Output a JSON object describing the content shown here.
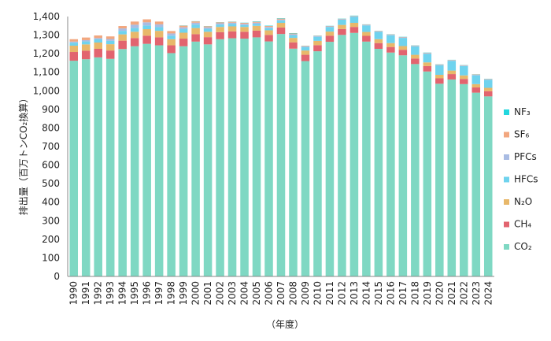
{
  "chart_data": {
    "type": "bar",
    "stacked": true,
    "title": "",
    "ylabel": "排出量（百万トンCO₂換算）",
    "xlabel": "（年度）",
    "ylim": [
      0,
      1400
    ],
    "yticks": [
      0,
      100,
      200,
      300,
      400,
      500,
      600,
      700,
      800,
      900,
      1000,
      1100,
      1200,
      1300,
      1400
    ],
    "ytick_labels": [
      "0",
      "100",
      "200",
      "300",
      "400",
      "500",
      "600",
      "700",
      "800",
      "900",
      "1,000",
      "1,100",
      "1,200",
      "1,300",
      "1,400"
    ],
    "grid": false,
    "legend_position": "right",
    "categories": [
      "1990",
      "1991",
      "1992",
      "1993",
      "1994",
      "1995",
      "1996",
      "1997",
      "1998",
      "1999",
      "2000",
      "2001",
      "2002",
      "2003",
      "2004",
      "2005",
      "2006",
      "2007",
      "2008",
      "2009",
      "2010",
      "2011",
      "2012",
      "2013",
      "2014",
      "2015",
      "2016",
      "2017",
      "2018",
      "2019",
      "2020",
      "2021",
      "2022",
      "2023",
      "2024"
    ],
    "series": [
      {
        "name": "CO₂",
        "color": "#7fd8c3",
        "values": [
          1162,
          1170,
          1180,
          1172,
          1225,
          1240,
          1253,
          1245,
          1203,
          1240,
          1265,
          1250,
          1278,
          1283,
          1281,
          1288,
          1266,
          1306,
          1227,
          1160,
          1213,
          1264,
          1301,
          1312,
          1265,
          1226,
          1206,
          1191,
          1144,
          1104,
          1038,
          1061,
          1036,
          990,
          970
        ]
      },
      {
        "name": "CH₄",
        "color": "#e2646f",
        "values": [
          47,
          46,
          46,
          45,
          45,
          44,
          44,
          43,
          42,
          41,
          40,
          39,
          38,
          37,
          37,
          36,
          35,
          35,
          34,
          34,
          33,
          33,
          32,
          32,
          31,
          31,
          30,
          30,
          30,
          29,
          29,
          29,
          28,
          28,
          28
        ]
      },
      {
        "name": "N₂O",
        "color": "#e8b86a",
        "values": [
          34,
          34,
          34,
          34,
          34,
          34,
          35,
          35,
          33,
          32,
          33,
          29,
          28,
          27,
          26,
          26,
          25,
          25,
          24,
          23,
          23,
          22,
          22,
          22,
          21,
          21,
          21,
          20,
          20,
          20,
          19,
          19,
          19,
          18,
          18
        ]
      },
      {
        "name": "HFCs",
        "color": "#6fd3ee",
        "values": [
          16,
          16,
          17,
          18,
          19,
          20,
          20,
          20,
          19,
          19,
          19,
          16,
          13,
          13,
          10,
          10,
          11,
          12,
          15,
          18,
          22,
          25,
          28,
          32,
          35,
          39,
          42,
          44,
          45,
          47,
          51,
          52,
          50,
          47,
          43
        ]
      },
      {
        "name": "PFCs",
        "color": "#a9bce3",
        "values": [
          6,
          7,
          7,
          10,
          13,
          18,
          17,
          15,
          12,
          10,
          10,
          8,
          7,
          7,
          7,
          7,
          7,
          6,
          5,
          4,
          4,
          3,
          3,
          3,
          3,
          3,
          3,
          3,
          3,
          3,
          3,
          3,
          3,
          3,
          3
        ]
      },
      {
        "name": "SF₆",
        "color": "#f2a77f",
        "values": [
          13,
          14,
          14,
          14,
          13,
          17,
          16,
          15,
          13,
          9,
          7,
          6,
          5,
          5,
          5,
          5,
          5,
          5,
          4,
          3,
          2,
          2,
          2,
          2,
          2,
          2,
          2,
          2,
          2,
          2,
          2,
          2,
          2,
          2,
          2
        ]
      },
      {
        "name": "NF₃",
        "color": "#22d7de",
        "values": [
          0,
          0,
          0,
          0,
          0,
          0,
          0,
          0,
          0,
          1,
          1,
          1,
          1,
          1,
          1,
          2,
          2,
          2,
          2,
          1,
          1,
          1,
          1,
          2,
          1,
          1,
          1,
          1,
          1,
          1,
          1,
          1,
          1,
          1,
          1
        ]
      }
    ],
    "legend_order": [
      "NF₃",
      "SF₆",
      "PFCs",
      "HFCs",
      "N₂O",
      "CH₄",
      "CO₂"
    ]
  }
}
